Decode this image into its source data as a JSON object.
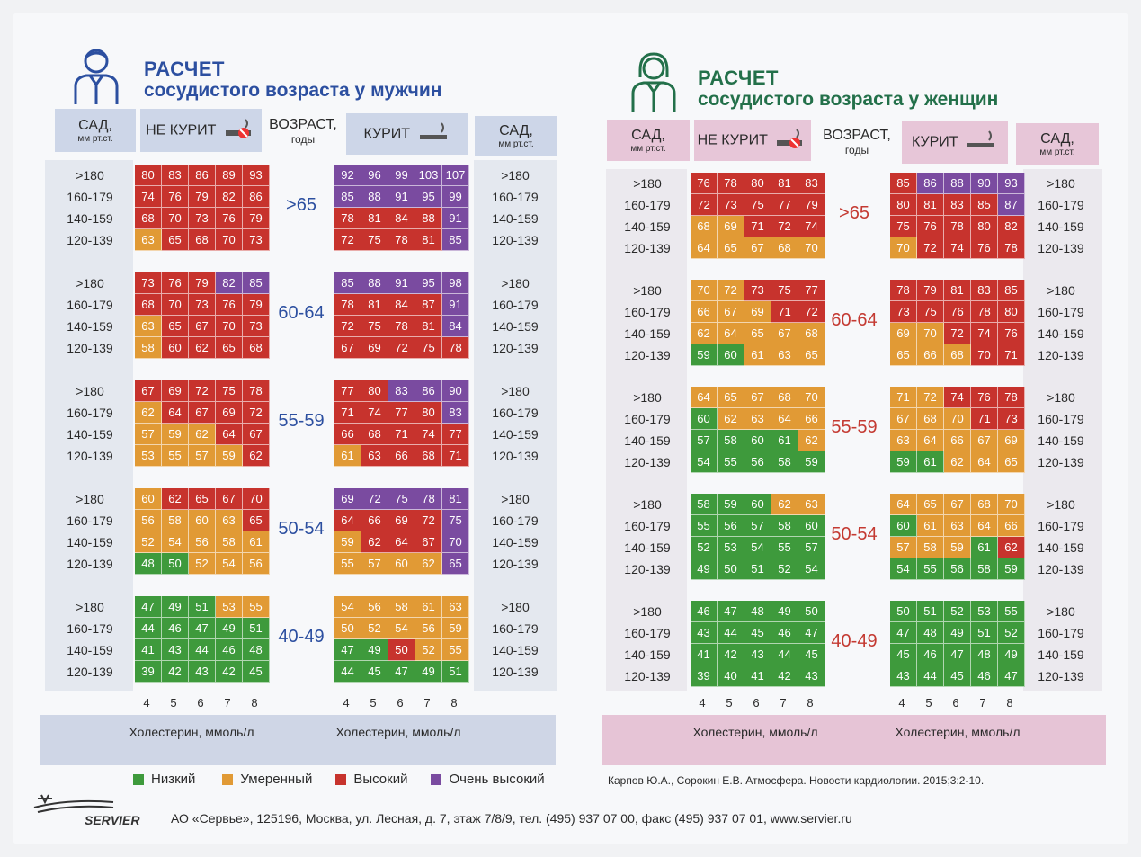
{
  "men": {
    "title_l1": "РАСЧЕТ",
    "title_l2": "сосудистого возраста у мужчин",
    "hdr_sad": "САД,",
    "hdr_sad_unit": "мм рт.ст.",
    "hdr_nonsmoke": "НЕ КУРИТ",
    "hdr_age": "ВОЗРАСТ,",
    "hdr_age_unit": "годы",
    "hdr_smoke": "КУРИТ",
    "row_labels": [
      ">180",
      "160-179",
      "140-159",
      "120-139"
    ],
    "age_groups": [
      ">65",
      "60-64",
      "55-59",
      "50-54",
      "40-49"
    ],
    "x_ticks": [
      "4",
      "5",
      "6",
      "7",
      "8"
    ],
    "x_label": "Холестерин, ммоль/л",
    "nonsmoker": [
      [
        [
          80,
          83,
          86,
          89,
          93
        ],
        [
          74,
          76,
          79,
          82,
          86
        ],
        [
          68,
          70,
          73,
          76,
          79
        ],
        [
          63,
          65,
          68,
          70,
          73
        ]
      ],
      [
        [
          73,
          76,
          79,
          82,
          85
        ],
        [
          68,
          70,
          73,
          76,
          79
        ],
        [
          63,
          65,
          67,
          70,
          73
        ],
        [
          58,
          60,
          62,
          65,
          68
        ]
      ],
      [
        [
          67,
          69,
          72,
          75,
          78
        ],
        [
          62,
          64,
          67,
          69,
          72
        ],
        [
          57,
          59,
          62,
          64,
          67
        ],
        [
          53,
          55,
          57,
          59,
          62
        ]
      ],
      [
        [
          60,
          62,
          65,
          67,
          70
        ],
        [
          56,
          58,
          60,
          63,
          65
        ],
        [
          52,
          54,
          56,
          58,
          61
        ],
        [
          48,
          50,
          52,
          54,
          56
        ]
      ],
      [
        [
          47,
          49,
          51,
          53,
          55
        ],
        [
          44,
          46,
          47,
          49,
          51
        ],
        [
          41,
          43,
          44,
          46,
          48
        ],
        [
          39,
          42,
          43,
          42,
          45
        ]
      ]
    ],
    "nonsmoker_colors": [
      [
        "rrrrr",
        "rrrrr",
        "rrrrr",
        "orrrr"
      ],
      [
        "rrrpp",
        "rrrrr",
        "orrrr",
        "orrrr"
      ],
      [
        "rrrrr",
        "orrrr",
        "ooorr",
        "oooor"
      ],
      [
        "orrrr",
        "oooor",
        "ooooo",
        "ggooo"
      ],
      [
        "gggoo",
        "ggggg",
        "ggggg",
        "ggggg"
      ]
    ],
    "smoker": [
      [
        [
          92,
          96,
          99,
          103,
          107
        ],
        [
          85,
          88,
          91,
          95,
          99
        ],
        [
          78,
          81,
          84,
          88,
          91
        ],
        [
          72,
          75,
          78,
          81,
          85
        ]
      ],
      [
        [
          85,
          88,
          91,
          95,
          98
        ],
        [
          78,
          81,
          84,
          87,
          91
        ],
        [
          72,
          75,
          78,
          81,
          84
        ],
        [
          67,
          69,
          72,
          75,
          78
        ]
      ],
      [
        [
          77,
          80,
          83,
          86,
          90
        ],
        [
          71,
          74,
          77,
          80,
          83
        ],
        [
          66,
          68,
          71,
          74,
          77
        ],
        [
          61,
          63,
          66,
          68,
          71
        ]
      ],
      [
        [
          69,
          72,
          75,
          78,
          81
        ],
        [
          64,
          66,
          69,
          72,
          75
        ],
        [
          59,
          62,
          64,
          67,
          70
        ],
        [
          55,
          57,
          60,
          62,
          65
        ]
      ],
      [
        [
          54,
          56,
          58,
          61,
          63
        ],
        [
          50,
          52,
          54,
          56,
          59
        ],
        [
          47,
          49,
          50,
          52,
          55
        ],
        [
          44,
          45,
          47,
          49,
          51
        ]
      ]
    ],
    "smoker_colors": [
      [
        "ppppp",
        "ppppp",
        "rrrrp",
        "rrrrp"
      ],
      [
        "ppppp",
        "rrrrp",
        "rrrrp",
        "rrrrr"
      ],
      [
        "rrppp",
        "rrrrp",
        "rrrrr",
        "orrrr"
      ],
      [
        "ppppp",
        "rrrrp",
        "orrrp",
        "oooop"
      ],
      [
        "ooooo",
        "ooooo",
        "ggroo",
        "ggggg"
      ]
    ]
  },
  "women": {
    "title_l1": "РАСЧЕТ",
    "title_l2": "сосудистого возраста у женщин",
    "hdr_sad": "САД,",
    "hdr_sad_unit": "мм рт.ст.",
    "hdr_nonsmoke": "НЕ КУРИТ",
    "hdr_age": "ВОЗРАСТ,",
    "hdr_age_unit": "годы",
    "hdr_smoke": "КУРИТ",
    "row_labels": [
      ">180",
      "160-179",
      "140-159",
      "120-139"
    ],
    "age_groups": [
      ">65",
      "60-64",
      "55-59",
      "50-54",
      "40-49"
    ],
    "x_ticks": [
      "4",
      "5",
      "6",
      "7",
      "8"
    ],
    "x_label": "Холестерин, ммоль/л",
    "nonsmoker": [
      [
        [
          76,
          78,
          80,
          81,
          83
        ],
        [
          72,
          73,
          75,
          77,
          79
        ],
        [
          68,
          69,
          71,
          72,
          74
        ],
        [
          64,
          65,
          67,
          68,
          70
        ]
      ],
      [
        [
          70,
          72,
          73,
          75,
          77
        ],
        [
          66,
          67,
          69,
          71,
          72
        ],
        [
          62,
          64,
          65,
          67,
          68
        ],
        [
          59,
          60,
          61,
          63,
          65
        ]
      ],
      [
        [
          64,
          65,
          67,
          68,
          70
        ],
        [
          60,
          62,
          63,
          64,
          66
        ],
        [
          57,
          58,
          60,
          61,
          62
        ],
        [
          54,
          55,
          56,
          58,
          59
        ]
      ],
      [
        [
          58,
          59,
          60,
          62,
          63
        ],
        [
          55,
          56,
          57,
          58,
          60
        ],
        [
          52,
          53,
          54,
          55,
          57
        ],
        [
          49,
          50,
          51,
          52,
          54
        ]
      ],
      [
        [
          46,
          47,
          48,
          49,
          50
        ],
        [
          43,
          44,
          45,
          46,
          47
        ],
        [
          41,
          42,
          43,
          44,
          45
        ],
        [
          39,
          40,
          41,
          42,
          43
        ]
      ]
    ],
    "nonsmoker_colors": [
      [
        "rrrrr",
        "rrrrr",
        "oorrr",
        "ooooo"
      ],
      [
        "oorrr",
        "ooorr",
        "ooooo",
        "ggooo"
      ],
      [
        "ooooo",
        "goooo",
        "ggggo",
        "ggggg"
      ],
      [
        "gggoo",
        "ggggg",
        "ggggg",
        "ggggg"
      ],
      [
        "ggggg",
        "ggggg",
        "ggggg",
        "ggggg"
      ]
    ],
    "smoker": [
      [
        [
          85,
          86,
          88,
          90,
          93
        ],
        [
          80,
          81,
          83,
          85,
          87
        ],
        [
          75,
          76,
          78,
          80,
          82
        ],
        [
          70,
          72,
          74,
          76,
          78
        ]
      ],
      [
        [
          78,
          79,
          81,
          83,
          85
        ],
        [
          73,
          75,
          76,
          78,
          80
        ],
        [
          69,
          70,
          72,
          74,
          76
        ],
        [
          65,
          66,
          68,
          70,
          71
        ]
      ],
      [
        [
          71,
          72,
          74,
          76,
          78
        ],
        [
          67,
          68,
          70,
          71,
          73
        ],
        [
          63,
          64,
          66,
          67,
          69
        ],
        [
          59,
          61,
          62,
          64,
          65
        ]
      ],
      [
        [
          64,
          65,
          67,
          68,
          70
        ],
        [
          60,
          61,
          63,
          64,
          66
        ],
        [
          57,
          58,
          59,
          61,
          62
        ],
        [
          54,
          55,
          56,
          58,
          59
        ]
      ],
      [
        [
          50,
          51,
          52,
          53,
          55
        ],
        [
          47,
          48,
          49,
          51,
          52
        ],
        [
          45,
          46,
          47,
          48,
          49
        ],
        [
          43,
          44,
          45,
          46,
          47
        ]
      ]
    ],
    "smoker_colors": [
      [
        "rpppp",
        "rrrrp",
        "rrrrr",
        "orrrr"
      ],
      [
        "rrrrr",
        "rrrrr",
        "oorrr",
        "ooorr"
      ],
      [
        "oorrr",
        "ooorr",
        "ooooo",
        "ggooo"
      ],
      [
        "ooooo",
        "goooo",
        "ooogr",
        "ggggg"
      ],
      [
        "ggggg",
        "ggggg",
        "ggggg",
        "ggggg"
      ]
    ]
  },
  "legend": {
    "low": "Низкий",
    "moderate": "Умеренный",
    "high": "Высокий",
    "very_high": "Очень высокий"
  },
  "reference": "Карпов Ю.А., Сорокин Е.В. Атмосфера. Новости кардиологии. 2015;3:2-10.",
  "footer": {
    "brand": "SERVIER",
    "address": "АО «Сервье», 125196, Москва, ул. Лесная, д. 7, этаж 7/8/9,  тел. (495) 937 07 00, факс (495) 937 07 01, www.servier.ru"
  },
  "colors": {
    "green": "#3e9a3c",
    "orange": "#e19a35",
    "red": "#c7332d",
    "purple": "#7a4ba0",
    "men_accent": "#2c4fa0",
    "women_accent": "#23704a",
    "women_age": "#c43a32"
  }
}
